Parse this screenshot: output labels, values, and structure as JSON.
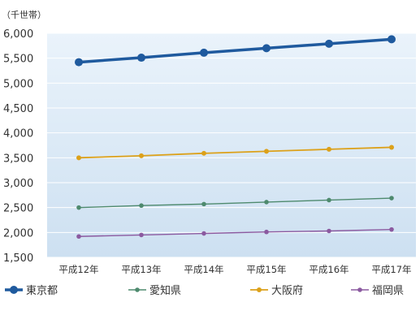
{
  "chart_data": {
    "type": "line",
    "unit_label": "（千世帯）",
    "categories": [
      "平成12年",
      "平成13年",
      "平成14年",
      "平成15年",
      "平成16年",
      "平成17年"
    ],
    "ylim": [
      1500,
      6000
    ],
    "yticks": [
      "6,000",
      "5,500",
      "5,000",
      "4,500",
      "4,000",
      "3,500",
      "3,000",
      "2,500",
      "2,000",
      "1,500"
    ],
    "ytick_values": [
      6000,
      5500,
      5000,
      4500,
      4000,
      3500,
      3000,
      2500,
      2000,
      1500
    ],
    "grid": true,
    "legend_position": "bottom",
    "series": [
      {
        "name": "東京都",
        "color": "#1f5a9e",
        "width": 3.5,
        "marker": 5,
        "values": [
          5420,
          5510,
          5610,
          5700,
          5790,
          5880
        ]
      },
      {
        "name": "愛知県",
        "color": "#4e8a6e",
        "width": 1.4,
        "marker": 2.8,
        "values": [
          2500,
          2540,
          2570,
          2610,
          2650,
          2690
        ]
      },
      {
        "name": "大阪府",
        "color": "#dca11a",
        "width": 1.8,
        "marker": 3,
        "values": [
          3500,
          3540,
          3590,
          3630,
          3670,
          3710
        ]
      },
      {
        "name": "福岡県",
        "color": "#8b5aa0",
        "width": 1.4,
        "marker": 2.8,
        "values": [
          1920,
          1950,
          1980,
          2010,
          2030,
          2060
        ]
      }
    ]
  }
}
